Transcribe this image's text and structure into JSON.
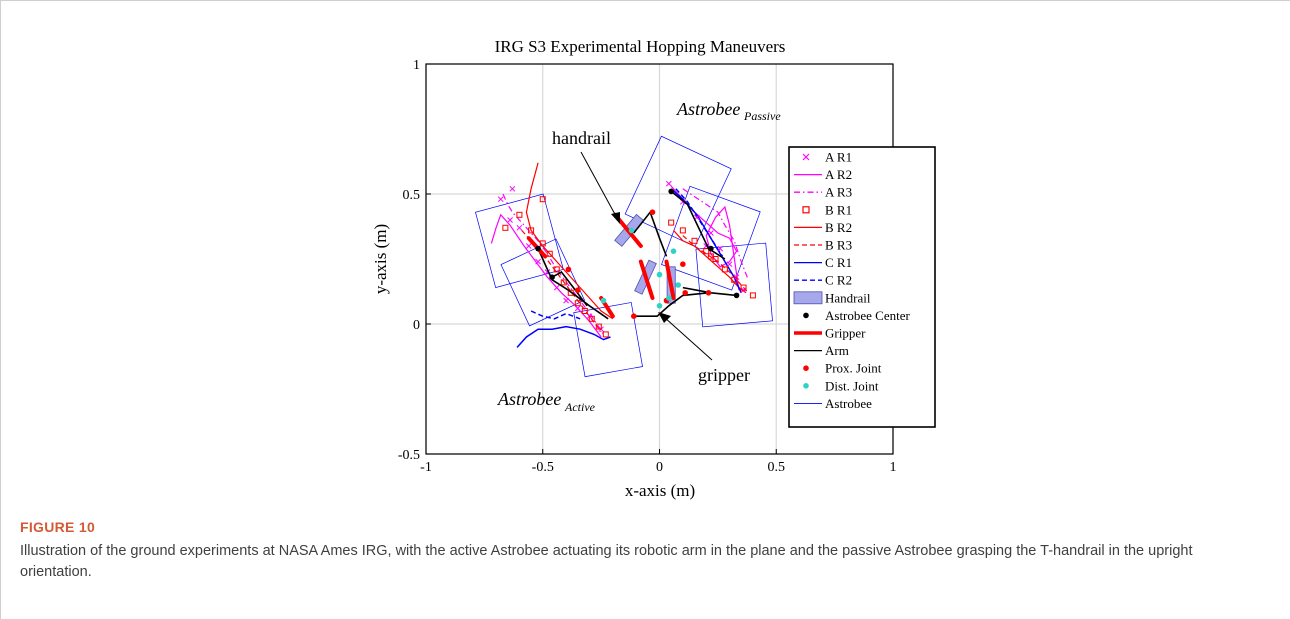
{
  "figure": {
    "label": "FIGURE 10",
    "caption": "Illustration of the ground experiments at NASA Ames IRG, with the active Astrobee actuating its robotic arm in the plane and the passive Astrobee grasping the T-handrail in the upright orientation."
  },
  "chart_data": {
    "type": "line",
    "title": "IRG S3 Experimental Hopping Maneuvers",
    "xlabel": "x-axis (m)",
    "ylabel": "y-axis (m)",
    "xlim": [
      -1,
      1
    ],
    "ylim": [
      -0.5,
      1
    ],
    "xticks": [
      -1,
      -0.5,
      0,
      0.5,
      1
    ],
    "yticks": [
      -0.5,
      0,
      0.5,
      1
    ],
    "xtick_labels": [
      "-1",
      "-0.5",
      "0",
      "0.5",
      "1"
    ],
    "ytick_labels": [
      "-0.5",
      "0",
      "0.5",
      "1"
    ],
    "grid": true,
    "legend_position": "right",
    "annotations": {
      "handrail": "handrail",
      "gripper": "gripper",
      "astrobee_passive_main": "Astrobee",
      "astrobee_passive_sub": "Passive",
      "astrobee_active_main": "Astrobee",
      "astrobee_active_sub": "Active"
    },
    "colors": {
      "magenta": "#ff00ff",
      "red": "#ff0000",
      "blue": "#0000ff",
      "black": "#000000",
      "cyan": "#2fd3c6",
      "handrail_fill": "#a7a7ec",
      "handrail_edge": "#5050b0"
    },
    "legend": [
      {
        "label": "A R1",
        "marker": "x",
        "color": "#ff00ff"
      },
      {
        "label": "A R2",
        "line": "solid",
        "color": "#ff00ff"
      },
      {
        "label": "A R3",
        "line": "dashdot",
        "color": "#ff00ff"
      },
      {
        "label": "B R1",
        "marker": "square",
        "color": "#ff0000"
      },
      {
        "label": "B R2",
        "line": "solid",
        "color": "#ff0000"
      },
      {
        "label": "B R3",
        "line": "dashed",
        "color": "#ff0000"
      },
      {
        "label": "C R1",
        "line": "solid",
        "color": "#0000ff"
      },
      {
        "label": "C R2",
        "line": "dashed",
        "color": "#0000ff"
      },
      {
        "label": "Handrail",
        "patch": true,
        "color": "#a7a7ec"
      },
      {
        "label": "Astrobee Center",
        "marker": "dot",
        "color": "#000000"
      },
      {
        "label": "Gripper",
        "line": "thick",
        "color": "#ff0000"
      },
      {
        "label": "Arm",
        "line": "solid",
        "color": "#000000"
      },
      {
        "label": "Prox. Joint",
        "marker": "dot",
        "color": "#ff0000"
      },
      {
        "label": "Dist. Joint",
        "marker": "dot",
        "color": "#2fd3c6"
      },
      {
        "label": "Astrobee",
        "line": "thin",
        "color": "#0000ff"
      }
    ],
    "series": [
      {
        "name": "A R2",
        "style": "magenta-solid",
        "x": [
          -0.72,
          -0.7,
          -0.68,
          -0.64,
          -0.58,
          -0.53,
          -0.48,
          -0.42,
          -0.36,
          -0.3,
          -0.25
        ],
        "y": [
          0.31,
          0.37,
          0.42,
          0.38,
          0.3,
          0.24,
          0.18,
          0.12,
          0.07,
          0.01,
          -0.05
        ]
      },
      {
        "name": "A R3",
        "style": "magenta-dashdot",
        "x": [
          -0.67,
          -0.65,
          -0.63,
          -0.6,
          -0.56,
          -0.52,
          -0.48,
          -0.44,
          -0.39,
          -0.34,
          -0.29,
          -0.24
        ],
        "y": [
          0.5,
          0.46,
          0.43,
          0.4,
          0.36,
          0.32,
          0.27,
          0.21,
          0.15,
          0.09,
          0.03,
          -0.04
        ]
      },
      {
        "name": "B R2",
        "style": "red-solid",
        "x": [
          -0.52,
          -0.55,
          -0.57,
          -0.55,
          -0.5,
          -0.45,
          -0.4,
          -0.35,
          -0.3,
          -0.25,
          -0.2
        ],
        "y": [
          0.62,
          0.52,
          0.43,
          0.36,
          0.3,
          0.25,
          0.2,
          0.15,
          0.1,
          0.05,
          0.02
        ]
      },
      {
        "name": "B R3",
        "style": "red-dashed",
        "x": [
          -0.59,
          -0.55,
          -0.5,
          -0.45,
          -0.4,
          -0.35,
          -0.3,
          -0.25
        ],
        "y": [
          0.36,
          0.32,
          0.27,
          0.21,
          0.15,
          0.09,
          0.03,
          -0.03
        ]
      },
      {
        "name": "C R1",
        "style": "blue-solid",
        "x": [
          -0.61,
          -0.57,
          -0.52,
          -0.46,
          -0.4,
          -0.34,
          -0.28,
          -0.24,
          -0.21
        ],
        "y": [
          -0.09,
          -0.05,
          -0.02,
          -0.02,
          -0.01,
          -0.02,
          -0.04,
          -0.06,
          -0.05
        ]
      },
      {
        "name": "C R2",
        "style": "blue-dashed",
        "x": [
          -0.55,
          -0.5,
          -0.45,
          -0.4,
          -0.34
        ],
        "y": [
          0.05,
          0.03,
          0.02,
          0.04,
          0.02
        ]
      },
      {
        "name": "A R2 (passive)",
        "style": "magenta-solid",
        "x": [
          0.05,
          0.1,
          0.15,
          0.2,
          0.25,
          0.3,
          0.33,
          0.3,
          0.26,
          0.22,
          0.2,
          0.24,
          0.28,
          0.3,
          0.34
        ],
        "y": [
          0.53,
          0.48,
          0.43,
          0.39,
          0.35,
          0.33,
          0.28,
          0.24,
          0.22,
          0.27,
          0.34,
          0.41,
          0.45,
          0.38,
          0.13
        ]
      },
      {
        "name": "A R3 (passive)",
        "style": "magenta-dashdot",
        "x": [
          0.1,
          0.15,
          0.2,
          0.25,
          0.28,
          0.32,
          0.35,
          0.38
        ],
        "y": [
          0.52,
          0.49,
          0.46,
          0.43,
          0.38,
          0.32,
          0.24,
          0.17
        ]
      },
      {
        "name": "B R2 (passive)",
        "style": "red-solid",
        "x": [
          0.06,
          0.1,
          0.15,
          0.2,
          0.25,
          0.3,
          0.34,
          0.37
        ],
        "y": [
          0.36,
          0.32,
          0.3,
          0.26,
          0.22,
          0.18,
          0.14,
          0.12
        ]
      },
      {
        "name": "B R3 (passive)",
        "style": "red-dashed",
        "x": [
          0.1,
          0.15,
          0.2,
          0.25,
          0.3,
          0.35,
          0.38
        ],
        "y": [
          0.34,
          0.3,
          0.27,
          0.24,
          0.2,
          0.15,
          0.12
        ]
      },
      {
        "name": "C R1 (passive)",
        "style": "blue-solid",
        "x": [
          0.05,
          0.1,
          0.16,
          0.2,
          0.24,
          0.28,
          0.32,
          0.35
        ],
        "y": [
          0.52,
          0.48,
          0.42,
          0.36,
          0.3,
          0.24,
          0.18,
          0.12
        ]
      },
      {
        "name": "C R2 (passive)",
        "style": "blue-dashed",
        "x": [
          0.07,
          0.12,
          0.17,
          0.22,
          0.27
        ],
        "y": [
          0.52,
          0.47,
          0.4,
          0.33,
          0.26
        ]
      }
    ],
    "a_r1_points": {
      "x": [
        -0.68,
        -0.64,
        -0.6,
        -0.56,
        -0.52,
        -0.48,
        -0.44,
        -0.4,
        -0.35,
        -0.3,
        -0.25,
        -0.63,
        0.04,
        0.1,
        0.16,
        0.22,
        0.26,
        0.3,
        0.33,
        0.36,
        0.2
      ],
      "y": [
        0.48,
        0.4,
        0.37,
        0.3,
        0.24,
        0.2,
        0.14,
        0.09,
        0.06,
        0.03,
        -0.02,
        0.52,
        0.54,
        0.47,
        0.41,
        0.35,
        0.29,
        0.23,
        0.18,
        0.13,
        0.3
      ]
    },
    "b_r1_points": {
      "x": [
        -0.6,
        -0.55,
        -0.5,
        -0.47,
        -0.44,
        -0.41,
        -0.38,
        -0.35,
        -0.32,
        -0.29,
        -0.26,
        -0.23,
        -0.66,
        -0.5,
        0.05,
        0.1,
        0.15,
        0.2,
        0.24,
        0.28,
        0.32,
        0.36,
        0.4,
        0.22
      ],
      "y": [
        0.42,
        0.36,
        0.31,
        0.27,
        0.21,
        0.16,
        0.12,
        0.08,
        0.05,
        0.02,
        -0.01,
        -0.04,
        0.37,
        0.48,
        0.39,
        0.36,
        0.32,
        0.28,
        0.25,
        0.21,
        0.17,
        0.14,
        0.11,
        0.26
      ]
    },
    "astrobee_boxes": [
      {
        "cx": -0.6,
        "cy": 0.32,
        "size": 0.3,
        "angle": 15
      },
      {
        "cx": -0.5,
        "cy": 0.16,
        "size": 0.26,
        "angle": 25
      },
      {
        "cx": -0.22,
        "cy": -0.06,
        "size": 0.25,
        "angle": 10
      },
      {
        "cx": 0.08,
        "cy": 0.51,
        "size": 0.33,
        "angle": -25
      },
      {
        "cx": 0.22,
        "cy": 0.33,
        "size": 0.32,
        "angle": -20
      },
      {
        "cx": 0.32,
        "cy": 0.15,
        "size": 0.3,
        "angle": 5
      }
    ],
    "handrails": [
      {
        "cx": -0.13,
        "cy": 0.36,
        "w": 0.04,
        "h": 0.13,
        "angle": 40
      },
      {
        "cx": -0.06,
        "cy": 0.18,
        "w": 0.035,
        "h": 0.13,
        "angle": 25
      },
      {
        "cx": 0.05,
        "cy": 0.15,
        "w": 0.035,
        "h": 0.14,
        "angle": 0
      }
    ],
    "grippers": [
      {
        "x": [
          -0.19,
          -0.08
        ],
        "y": [
          0.42,
          0.3
        ]
      },
      {
        "x": [
          -0.08,
          -0.03
        ],
        "y": [
          0.24,
          0.1
        ]
      },
      {
        "x": [
          0.03,
          0.06
        ],
        "y": [
          0.24,
          0.1
        ]
      },
      {
        "x": [
          -0.25,
          -0.2
        ],
        "y": [
          0.1,
          0.03
        ]
      },
      {
        "x": [
          -0.56,
          -0.49
        ],
        "y": [
          0.33,
          0.26
        ]
      }
    ],
    "arms": [
      {
        "x": [
          -0.52,
          -0.46,
          -0.39,
          -0.3,
          -0.22
        ],
        "y": [
          0.29,
          0.17,
          0.13,
          0.07,
          0.02
        ]
      },
      {
        "x": [
          -0.46,
          -0.42,
          -0.36,
          -0.31
        ],
        "y": [
          0.18,
          0.2,
          0.13,
          0.07
        ]
      },
      {
        "x": [
          -0.11,
          -0.04,
          0.0,
          0.03
        ],
        "y": [
          0.35,
          0.43,
          0.33,
          0.26
        ]
      },
      {
        "x": [
          -0.11,
          -0.01,
          0.04,
          0.1,
          0.21
        ],
        "y": [
          0.03,
          0.03,
          0.07,
          0.11,
          0.12
        ]
      },
      {
        "x": [
          0.05,
          0.12,
          0.21,
          0.28
        ],
        "y": [
          0.51,
          0.46,
          0.29,
          0.25
        ]
      },
      {
        "x": [
          0.1,
          0.16,
          0.22,
          0.33
        ],
        "y": [
          0.14,
          0.13,
          0.12,
          0.11
        ]
      }
    ],
    "astrobee_centers": {
      "x": [
        -0.52,
        -0.46,
        0.05,
        0.22,
        0.33
      ],
      "y": [
        0.29,
        0.18,
        0.51,
        0.29,
        0.11
      ]
    },
    "prox_joints": {
      "x": [
        -0.39,
        -0.35,
        -0.03,
        0.1,
        0.21,
        -0.11,
        0.03,
        0.11
      ],
      "y": [
        0.21,
        0.13,
        0.43,
        0.23,
        0.12,
        0.03,
        0.09,
        0.12
      ]
    },
    "dist_joints": {
      "x": [
        -0.12,
        -0.24,
        0.0,
        0.0,
        0.04,
        0.08,
        0.06
      ],
      "y": [
        0.36,
        0.09,
        0.19,
        0.07,
        0.1,
        0.15,
        0.28
      ]
    }
  }
}
